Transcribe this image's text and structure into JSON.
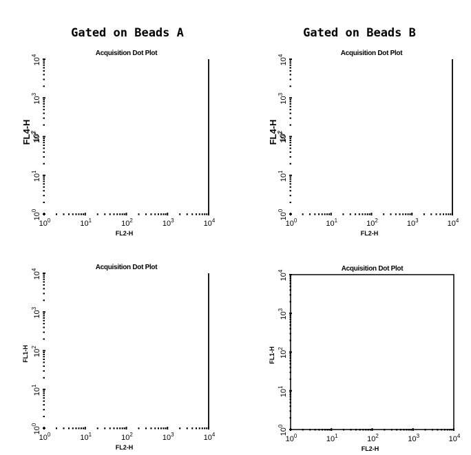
{
  "figure": {
    "column_titles": [
      "Gated on Beads A",
      "Gated on Beads B"
    ]
  },
  "chart_data": [
    {
      "type": "scatter",
      "title": "Acquisition Dot Plot",
      "xlabel": "FL2-H",
      "ylabel": "FL4-H",
      "x_scale": "log",
      "y_scale": "log",
      "xlim": [
        1,
        10000
      ],
      "ylim": [
        1,
        10000
      ],
      "x_ticks": [
        1,
        10,
        100,
        1000,
        10000
      ],
      "y_ticks": [
        1,
        10,
        100,
        1000,
        10000
      ],
      "x_tick_labels": [
        "10",
        "10",
        "10",
        "10",
        "10"
      ],
      "x_tick_exponents": [
        "0",
        "1",
        "2",
        "3",
        "4"
      ],
      "y_tick_labels": [
        "10",
        "10",
        "10",
        "10",
        "10"
      ],
      "y_tick_exponents": [
        "0",
        "1",
        "2",
        "3",
        "4"
      ],
      "extra_y_label": "10",
      "extra_y_exponent": "2",
      "series": [],
      "frame": "partial"
    },
    {
      "type": "scatter",
      "title": "Acquisition Dot Plot",
      "xlabel": "FL2-H",
      "ylabel": "FL4-H",
      "x_scale": "log",
      "y_scale": "log",
      "xlim": [
        1,
        10000
      ],
      "ylim": [
        1,
        10000
      ],
      "x_ticks": [
        1,
        10,
        100,
        1000,
        10000
      ],
      "y_ticks": [
        1,
        10,
        100,
        1000,
        10000
      ],
      "x_tick_labels": [
        "10",
        "10",
        "10",
        "10",
        "10"
      ],
      "x_tick_exponents": [
        "0",
        "1",
        "2",
        "3",
        "4"
      ],
      "y_tick_labels": [
        "10",
        "10",
        "10",
        "10",
        "10"
      ],
      "y_tick_exponents": [
        "0",
        "1",
        "2",
        "3",
        "4"
      ],
      "extra_y_label": "10",
      "extra_y_exponent": "2",
      "series": [],
      "frame": "partial"
    },
    {
      "type": "scatter",
      "title": "Acquisition Dot Plot",
      "xlabel": "FL2-H",
      "ylabel": "FL1-H",
      "x_scale": "log",
      "y_scale": "log",
      "xlim": [
        1,
        10000
      ],
      "ylim": [
        1,
        10000
      ],
      "x_ticks": [
        1,
        10,
        100,
        1000,
        10000
      ],
      "y_ticks": [
        1,
        10,
        100,
        1000,
        10000
      ],
      "x_tick_labels": [
        "10",
        "10",
        "10",
        "10",
        "10"
      ],
      "x_tick_exponents": [
        "0",
        "1",
        "2",
        "3",
        "4"
      ],
      "y_tick_labels": [
        "10",
        "10",
        "10",
        "10",
        "10"
      ],
      "y_tick_exponents": [
        "0",
        "1",
        "2",
        "3",
        "4"
      ],
      "series": [],
      "frame": "partial"
    },
    {
      "type": "scatter",
      "title": "Acquisition Dot Plot",
      "xlabel": "FL2-H",
      "ylabel": "FL1-H",
      "x_scale": "log",
      "y_scale": "log",
      "xlim": [
        1,
        10000
      ],
      "ylim": [
        1,
        10000
      ],
      "x_ticks": [
        1,
        10,
        100,
        1000,
        10000
      ],
      "y_ticks": [
        1,
        10,
        100,
        1000,
        10000
      ],
      "x_tick_labels": [
        "10",
        "10",
        "10",
        "10",
        "10"
      ],
      "x_tick_exponents": [
        "0",
        "1",
        "2",
        "3",
        "4"
      ],
      "y_tick_labels": [
        "10",
        "10",
        "10",
        "10",
        "10"
      ],
      "y_tick_exponents": [
        "0",
        "1",
        "2",
        "3",
        "4"
      ],
      "series": [],
      "frame": "full"
    }
  ]
}
